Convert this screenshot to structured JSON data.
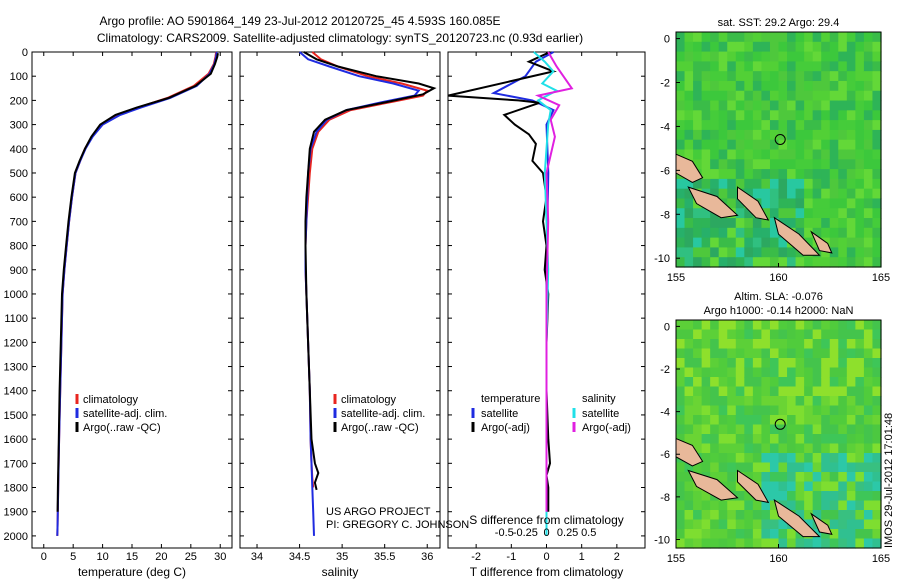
{
  "title": {
    "line1": "Argo profile: AO 5901864_149 23-Jul-2012 20120725_45 4.593S 160.085E",
    "line2": "Climatology: CARS2009. Satellite-adjusted climatology: synTS_20120723.nc (0.93d earlier)"
  },
  "depth_ticks": [
    "0",
    "100",
    "200",
    "300",
    "400",
    "500",
    "600",
    "700",
    "800",
    "900",
    "1000",
    "1100",
    "1200",
    "1300",
    "1400",
    "1500",
    "1600",
    "1700",
    "1800",
    "1900",
    "2000"
  ],
  "chart_data": [
    {
      "type": "line",
      "panel": "temperature",
      "xlabel": "temperature (deg C)",
      "xlim": [
        -2,
        32
      ],
      "ylim": [
        2050,
        0
      ],
      "xticks": [
        "0",
        "5",
        "10",
        "15",
        "20",
        "25",
        "30"
      ],
      "legend": {
        "placement": "lower-center",
        "entries": [
          "climatology",
          "satellite-adj. clim.",
          "Argo(..raw -QC)"
        ]
      },
      "series": [
        {
          "name": "climatology",
          "color": "#e8251f",
          "x": [
            29.3,
            29.2,
            28.9,
            28.0,
            25.5,
            21.0,
            16.0,
            12.5,
            10.0,
            8.2,
            7.0,
            6.2,
            5.4,
            4.8,
            4.3,
            3.9,
            3.5,
            3.2,
            3.0,
            2.8,
            2.6,
            2.45,
            2.35,
            2.3
          ],
          "y": [
            0,
            20,
            50,
            90,
            140,
            190,
            230,
            260,
            300,
            350,
            400,
            450,
            500,
            600,
            700,
            800,
            900,
            1000,
            1200,
            1400,
            1600,
            1800,
            1950,
            2000
          ]
        },
        {
          "name": "satellite-adj. clim.",
          "color": "#1f2be0",
          "x": [
            29.4,
            29.3,
            29.0,
            28.2,
            26.0,
            21.5,
            16.5,
            13.0,
            10.0,
            8.3,
            7.1,
            6.2,
            5.4,
            4.8,
            4.3,
            3.9,
            3.5,
            3.2,
            3.0,
            2.8,
            2.6,
            2.45,
            2.35,
            2.3
          ],
          "y": [
            0,
            20,
            50,
            90,
            140,
            190,
            230,
            260,
            300,
            350,
            400,
            450,
            500,
            600,
            700,
            800,
            900,
            1000,
            1200,
            1400,
            1600,
            1800,
            1950,
            2000
          ]
        },
        {
          "name": "Argo(..raw -QC)",
          "color": "#000000",
          "x": [
            29.6,
            29.5,
            29.1,
            28.4,
            25.8,
            21.2,
            15.8,
            12.2,
            9.6,
            8.1,
            7.0,
            6.1,
            5.3,
            4.7,
            4.2,
            3.8,
            3.4,
            3.1,
            2.9,
            2.7,
            2.55,
            2.4,
            2.35
          ],
          "y": [
            5,
            20,
            50,
            90,
            140,
            190,
            230,
            260,
            300,
            350,
            400,
            450,
            500,
            600,
            700,
            800,
            900,
            1000,
            1200,
            1400,
            1600,
            1800,
            1900
          ]
        }
      ]
    },
    {
      "type": "line",
      "panel": "salinity",
      "xlabel": "salinity",
      "xlim": [
        33.8,
        36.15
      ],
      "ylim": [
        2050,
        0
      ],
      "xticks": [
        "34",
        "34.5",
        "35",
        "35.5",
        "36"
      ],
      "legend": {
        "placement": "lower-center",
        "entries": [
          "climatology",
          "satellite-adj. clim.",
          "Argo(..raw -QC)"
        ]
      },
      "annotation": [
        "US ARGO PROJECT",
        "PI: GREGORY C. JOHNSON"
      ],
      "series": [
        {
          "name": "climatology",
          "color": "#e8251f",
          "x": [
            34.65,
            34.75,
            34.95,
            35.3,
            35.7,
            36.0,
            35.95,
            35.6,
            35.1,
            34.85,
            34.72,
            34.65,
            34.62,
            34.6,
            34.58,
            34.57,
            34.57,
            34.58,
            34.6,
            34.62,
            34.63,
            34.64,
            34.65,
            34.66
          ],
          "y": [
            0,
            30,
            60,
            100,
            130,
            160,
            180,
            205,
            240,
            280,
            330,
            400,
            500,
            600,
            700,
            800,
            900,
            1000,
            1200,
            1400,
            1600,
            1700,
            1760,
            1800
          ]
        },
        {
          "name": "satellite-adj. clim.",
          "color": "#1f2be0",
          "x": [
            34.5,
            34.6,
            34.85,
            35.2,
            35.6,
            35.9,
            35.85,
            35.5,
            35.05,
            34.82,
            34.7,
            34.63,
            34.6,
            34.59,
            34.58,
            34.57,
            34.57,
            34.58,
            34.6,
            34.62,
            34.63,
            34.64,
            34.65,
            34.66,
            34.67
          ],
          "y": [
            0,
            30,
            60,
            100,
            130,
            160,
            180,
            205,
            240,
            280,
            330,
            400,
            500,
            600,
            700,
            800,
            900,
            1000,
            1200,
            1400,
            1600,
            1700,
            1800,
            1900,
            2000
          ]
        },
        {
          "name": "Argo(..raw -QC)",
          "color": "#000000",
          "x": [
            34.55,
            34.7,
            34.95,
            35.4,
            35.9,
            36.08,
            35.95,
            35.55,
            35.05,
            34.8,
            34.67,
            34.62,
            34.6,
            34.58,
            34.57,
            34.57,
            34.58,
            34.6,
            34.62,
            34.64,
            34.68,
            34.72,
            34.68,
            34.7
          ],
          "y": [
            0,
            30,
            60,
            100,
            130,
            150,
            175,
            205,
            240,
            280,
            330,
            400,
            500,
            600,
            700,
            800,
            1000,
            1200,
            1400,
            1600,
            1700,
            1740,
            1780,
            1810
          ]
        }
      ]
    },
    {
      "type": "line",
      "panel": "difference",
      "xlabel_S": "S difference from climatology",
      "xlabel_T": "T difference from climatology",
      "xlim_T": [
        -2.8,
        2.8
      ],
      "ylim": [
        2050,
        0
      ],
      "xticks_T": [
        "-2",
        "-1",
        "0",
        "1",
        "2"
      ],
      "xticks_S": [
        "-0.5",
        "-0.25",
        "0",
        "0.25",
        "0.5"
      ],
      "legend": {
        "placement": "lower-center",
        "headers": [
          "temperature",
          "salinity"
        ],
        "entries_T": [
          "satellite",
          "Argo(-adj)"
        ],
        "entries_S": [
          "satellite",
          "Argo(-adj)"
        ]
      },
      "series": [
        {
          "name": "T satellite",
          "color": "#1f2be0",
          "x": [
            0.2,
            -0.3,
            -0.6,
            -1.5,
            -0.4,
            0.2,
            0.0,
            0.05,
            0.0,
            0.0,
            0.0
          ],
          "y": [
            0,
            40,
            100,
            170,
            200,
            240,
            300,
            500,
            900,
            1400,
            1900
          ]
        },
        {
          "name": "T Argo(-adj)",
          "color": "#000000",
          "x": [
            0.1,
            -0.5,
            0.2,
            -2.8,
            -0.8,
            -0.2,
            -1.2,
            -0.9,
            -0.5,
            -0.3,
            -0.4,
            -0.1,
            0.0,
            -0.1,
            0.0,
            -0.05,
            0.05,
            0.0,
            0.0,
            0.05,
            0.1,
            0.0,
            0.05,
            0.05
          ],
          "y": [
            0,
            40,
            80,
            180,
            200,
            210,
            260,
            300,
            340,
            380,
            450,
            500,
            600,
            700,
            800,
            900,
            1000,
            1200,
            1400,
            1600,
            1700,
            1750,
            1800,
            1900
          ]
        },
        {
          "name": "S satellite",
          "color": "#20e0e8",
          "x": [
            -0.15,
            -0.02,
            0.08,
            -0.05,
            0.12,
            -0.1,
            0.05,
            0.02,
            0.0,
            -0.02,
            0.0,
            0.02,
            0.0,
            0.0,
            0.0
          ],
          "y": [
            0,
            40,
            80,
            130,
            160,
            200,
            240,
            300,
            400,
            500,
            700,
            900,
            1200,
            1600,
            2000
          ]
        },
        {
          "name": "S Argo(-adj)",
          "color": "#e020e0",
          "x": [
            0.02,
            0.12,
            0.3,
            -0.1,
            0.15,
            0.05,
            0.1,
            0.0,
            0.02,
            0.0,
            0.0,
            0.0
          ],
          "y": [
            0,
            60,
            150,
            180,
            220,
            280,
            350,
            500,
            700,
            1000,
            1500,
            1900
          ]
        }
      ]
    }
  ],
  "maps": [
    {
      "title_lines": [
        "sat. SST: 29.2 Argo: 29.4"
      ],
      "xticks": [
        "155",
        "160",
        "165"
      ],
      "yticks": [
        "0",
        "-2",
        "-4",
        "-6",
        "-8",
        "-10"
      ]
    },
    {
      "title_lines": [
        "Altim. SLA: -0.076",
        "Argo h1000: -0.14 h2000: NaN"
      ],
      "xticks": [
        "155",
        "160",
        "165"
      ],
      "yticks": [
        "0",
        "-2",
        "-4",
        "-6",
        "-8",
        "-10"
      ]
    }
  ],
  "footer": "IMOS 29-Jul-2012 17:01:48",
  "colors": {
    "climatology": "#e8251f",
    "satellite": "#1f2be0",
    "argo": "#000000",
    "sat_S": "#20e0e8",
    "argo_S": "#e020e0",
    "land": "#e8b89a"
  }
}
